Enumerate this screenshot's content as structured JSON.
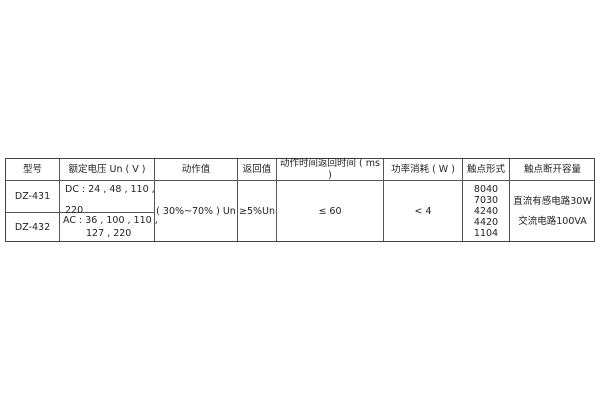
{
  "headers": [
    "型号",
    "额定电压 Un ( V )",
    "动作值",
    "返回值",
    "动作时间返回时间 ( ms )",
    "功率消耗 ( W )",
    "触点形式",
    "触点断开容量"
  ],
  "rows": [
    {
      "model": "DZ-431",
      "voltage_line1": "DC : 24 , 48 , 110 ,",
      "voltage_line2": "220"
    },
    {
      "model": "DZ-432",
      "voltage_line1": "AC : 36 , 100 , 110 ,",
      "voltage_line2": "127 , 220"
    }
  ],
  "shared": {
    "operate_value": "( 30%~70% ) Un",
    "return_value": "≥5%Un",
    "time": "≤ 60",
    "power": "< 4",
    "contacts": [
      "8040",
      "7030",
      "4240",
      "4420",
      "1104"
    ],
    "capacity": [
      "直流有感电路30W",
      "交流电路100VA"
    ]
  }
}
